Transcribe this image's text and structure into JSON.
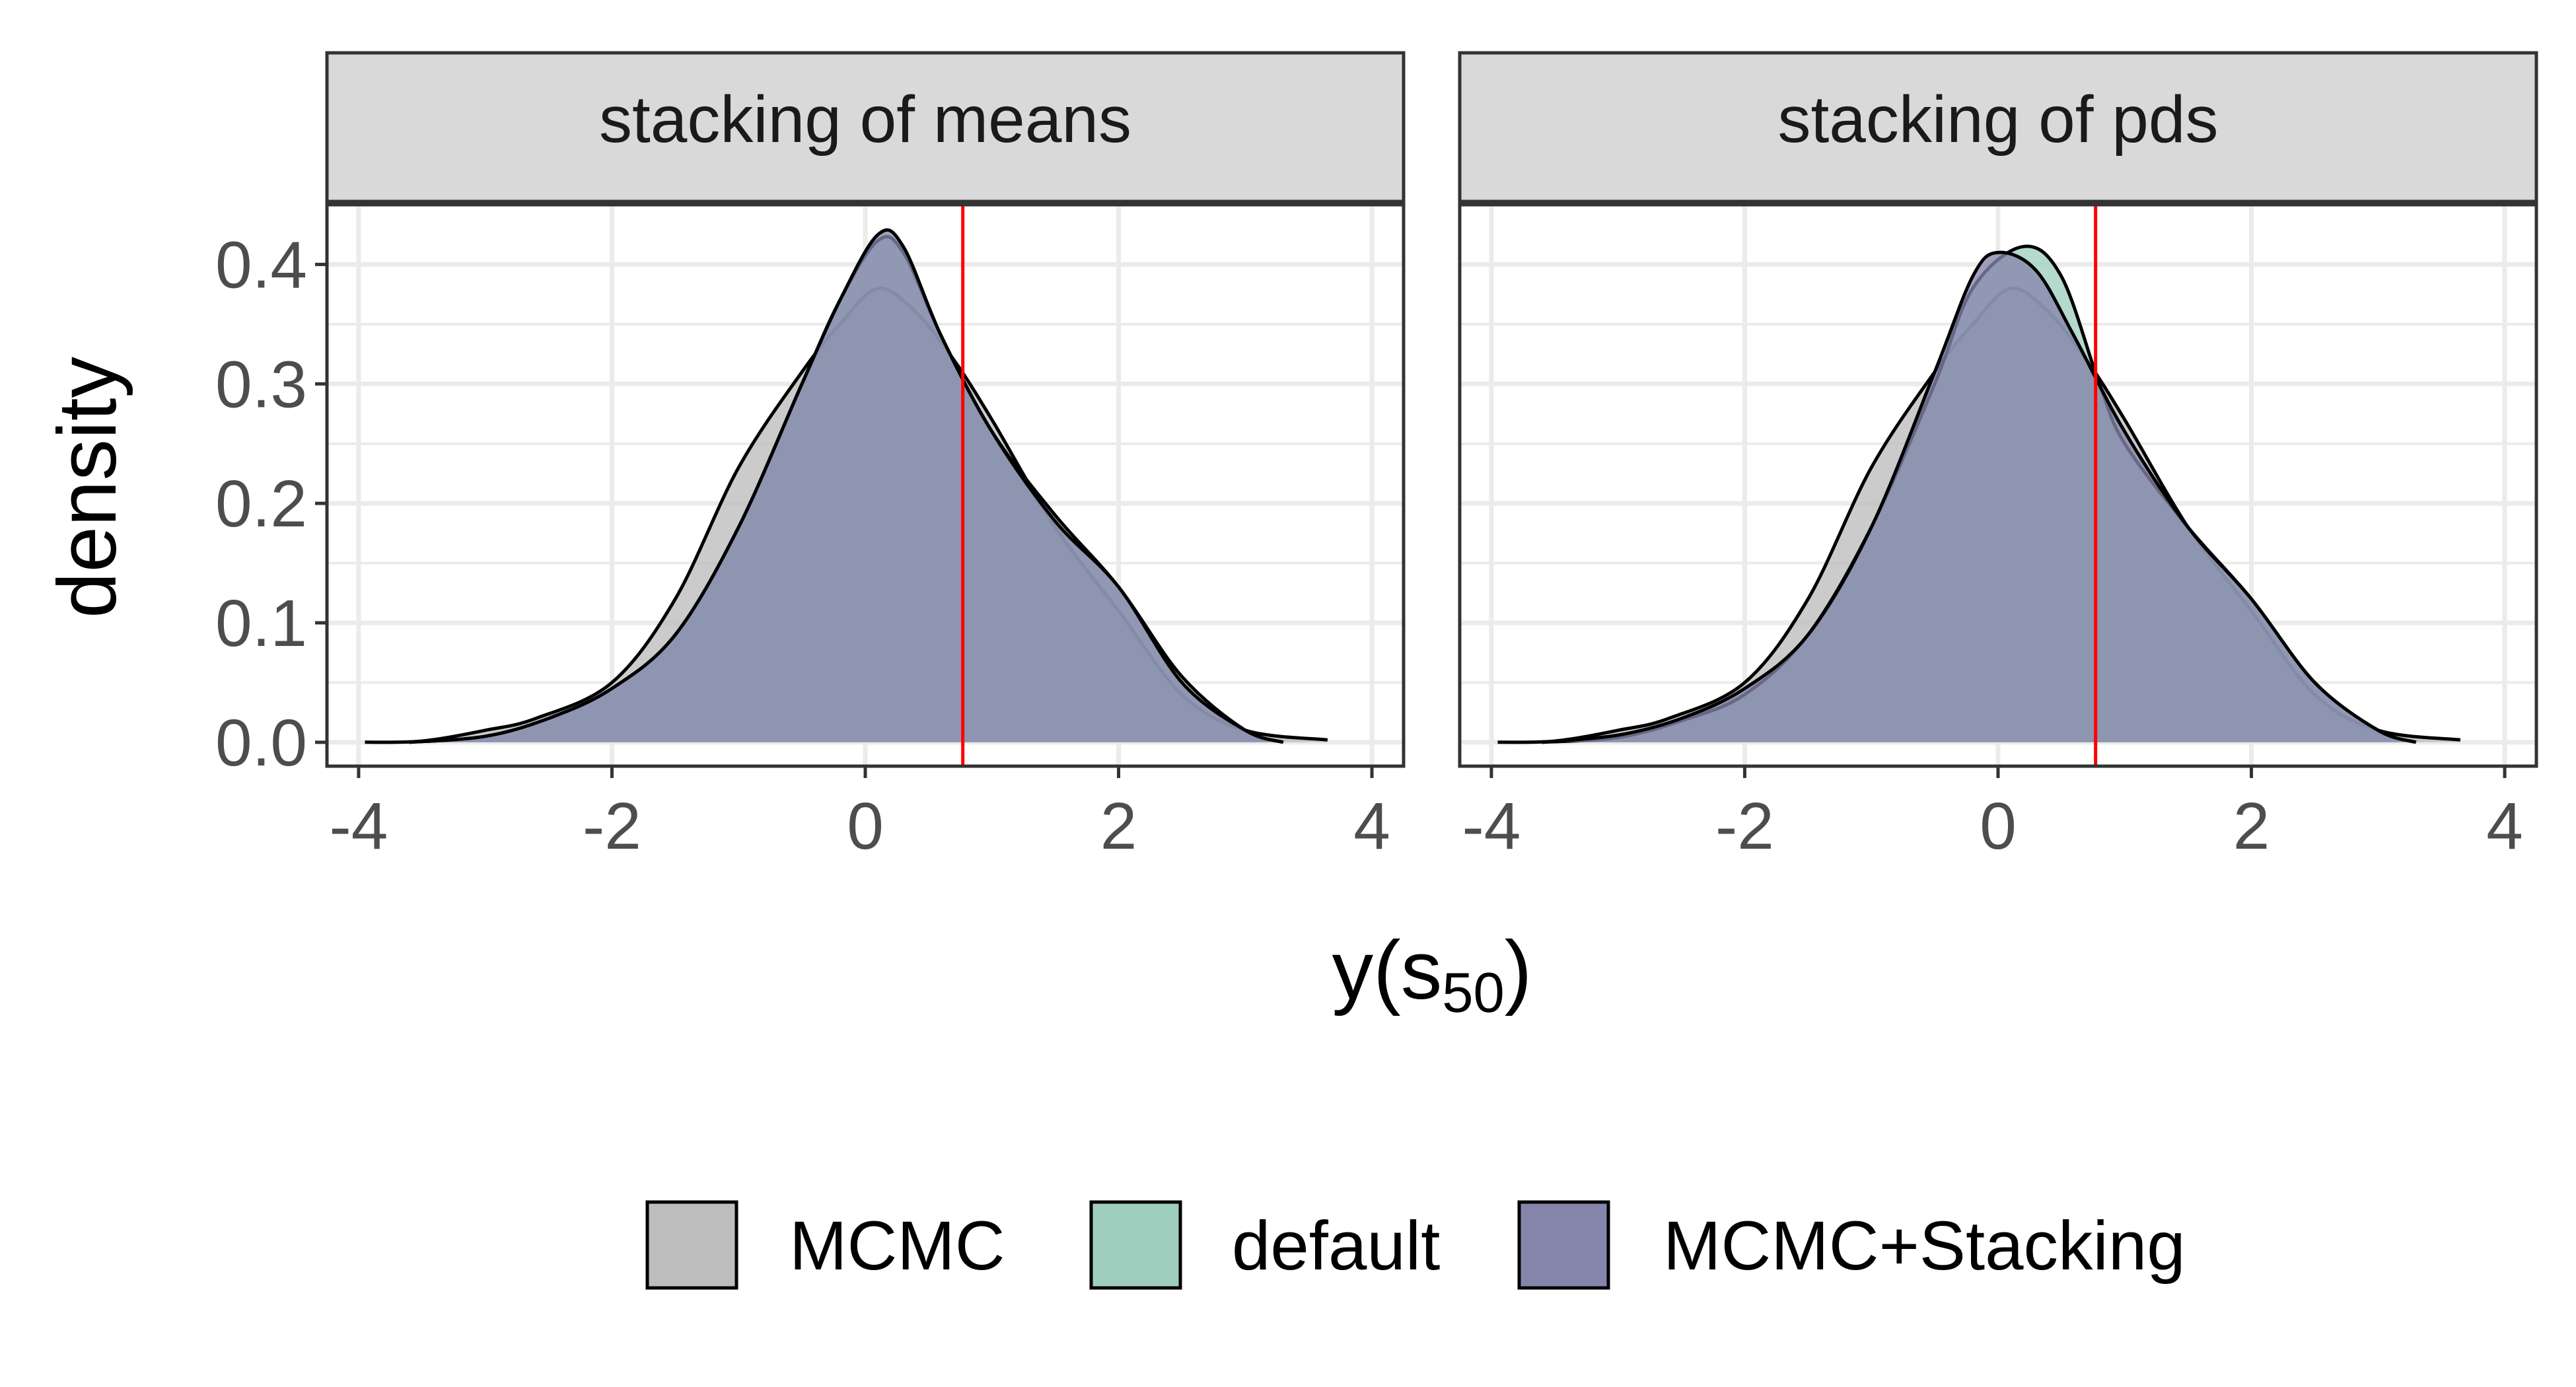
{
  "chart_data": {
    "type": "area",
    "kind": "density",
    "xlabel": "y(s50)",
    "xlabel_main": "y",
    "xlabel_open": "(",
    "xlabel_var": "s",
    "xlabel_sub": "50",
    "xlabel_close": ")",
    "ylabel": "density",
    "xlim": [
      -4.25,
      4.25
    ],
    "ylim": [
      -0.02,
      0.45
    ],
    "x_ticks": [
      -4,
      -2,
      0,
      2,
      4
    ],
    "x_tick_labels": [
      "-4",
      "-2",
      "0",
      "2",
      "4"
    ],
    "y_ticks": [
      0.0,
      0.1,
      0.2,
      0.3,
      0.4
    ],
    "y_tick_labels": [
      "0.0",
      "0.1",
      "0.2",
      "0.3",
      "0.4"
    ],
    "grid": true,
    "legend_position": "bottom",
    "legend": [
      {
        "name": "MCMC",
        "color": "#BDBDBD"
      },
      {
        "name": "default",
        "color": "#9FCEBF"
      },
      {
        "name": "MCMC+Stacking",
        "color": "#8585AC"
      }
    ],
    "overlap_color": "#5C6B8C",
    "reference_line": {
      "x": 0.77,
      "color": "#FF0000"
    },
    "panels": [
      {
        "title": "stacking of means",
        "series": [
          {
            "name": "MCMC",
            "color": "#BDBDBD",
            "x": [
              -3.95,
              -3.5,
              -3.0,
              -2.6,
              -2.0,
              -1.5,
              -1.0,
              -0.5,
              -0.2,
              0.1,
              0.4,
              0.7,
              1.0,
              1.5,
              2.0,
              2.5,
              3.0,
              3.65
            ],
            "y": [
              0.0,
              0.001,
              0.01,
              0.02,
              0.05,
              0.12,
              0.23,
              0.31,
              0.35,
              0.38,
              0.36,
              0.32,
              0.27,
              0.18,
              0.11,
              0.04,
              0.01,
              0.002
            ]
          },
          {
            "name": "default",
            "color": "#9FCEBF",
            "x": [
              -3.6,
              -3.0,
              -2.5,
              -2.0,
              -1.5,
              -1.0,
              -0.5,
              -0.2,
              0.1,
              0.3,
              0.6,
              1.0,
              1.5,
              2.0,
              2.5,
              3.0,
              3.3
            ],
            "y": [
              0.0,
              0.005,
              0.02,
              0.045,
              0.09,
              0.18,
              0.3,
              0.37,
              0.42,
              0.41,
              0.34,
              0.26,
              0.19,
              0.13,
              0.055,
              0.01,
              0.0
            ]
          },
          {
            "name": "MCMC+Stacking",
            "color": "#8585AC",
            "x": [
              -3.6,
              -3.0,
              -2.5,
              -2.0,
              -1.5,
              -1.0,
              -0.5,
              -0.2,
              0.1,
              0.3,
              0.6,
              1.0,
              1.5,
              2.0,
              2.5,
              3.0,
              3.3
            ],
            "y": [
              0.0,
              0.005,
              0.02,
              0.045,
              0.09,
              0.18,
              0.3,
              0.37,
              0.425,
              0.415,
              0.34,
              0.26,
              0.185,
              0.13,
              0.05,
              0.01,
              0.0
            ]
          }
        ]
      },
      {
        "title": "stacking of pds",
        "series": [
          {
            "name": "MCMC",
            "color": "#BDBDBD",
            "x": [
              -3.95,
              -3.5,
              -3.0,
              -2.6,
              -2.0,
              -1.5,
              -1.0,
              -0.5,
              -0.2,
              0.1,
              0.4,
              0.7,
              1.0,
              1.5,
              2.0,
              2.5,
              3.0,
              3.65
            ],
            "y": [
              0.0,
              0.001,
              0.01,
              0.02,
              0.05,
              0.12,
              0.23,
              0.31,
              0.35,
              0.38,
              0.36,
              0.32,
              0.27,
              0.18,
              0.11,
              0.04,
              0.01,
              0.002
            ]
          },
          {
            "name": "default",
            "color": "#9FCEBF",
            "x": [
              -3.6,
              -3.0,
              -2.5,
              -2.0,
              -1.5,
              -1.0,
              -0.5,
              -0.2,
              0.2,
              0.5,
              0.8,
              1.0,
              1.5,
              2.0,
              2.5,
              3.0,
              3.3
            ],
            "y": [
              0.0,
              0.004,
              0.018,
              0.04,
              0.09,
              0.18,
              0.3,
              0.38,
              0.415,
              0.39,
              0.3,
              0.25,
              0.18,
              0.12,
              0.05,
              0.01,
              0.0
            ]
          },
          {
            "name": "MCMC+Stacking",
            "color": "#8585AC",
            "x": [
              -3.6,
              -3.0,
              -2.5,
              -2.0,
              -1.5,
              -1.0,
              -0.5,
              -0.2,
              0.0,
              0.3,
              0.6,
              1.0,
              1.5,
              2.0,
              2.5,
              3.0,
              3.3
            ],
            "y": [
              0.0,
              0.006,
              0.02,
              0.045,
              0.09,
              0.18,
              0.31,
              0.39,
              0.41,
              0.395,
              0.34,
              0.26,
              0.18,
              0.12,
              0.05,
              0.01,
              0.0
            ]
          }
        ]
      }
    ]
  }
}
